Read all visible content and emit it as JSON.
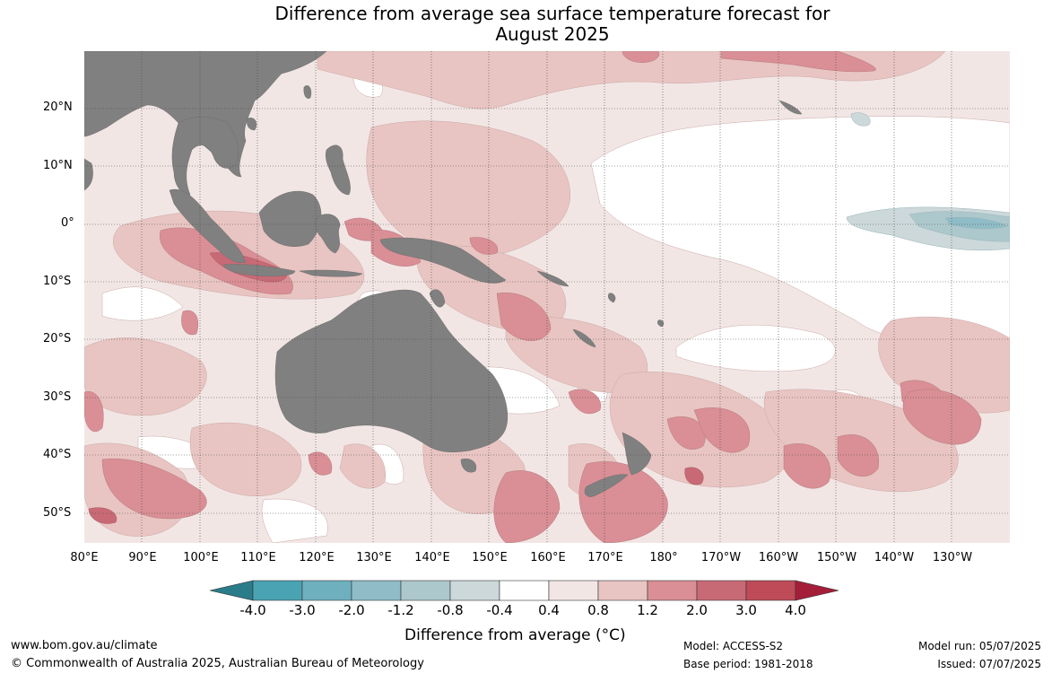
{
  "title_line1": "Difference from average sea surface temperature forecast for",
  "title_line2": "August 2025",
  "map": {
    "lat_labels": [
      "20°N",
      "10°N",
      "0°",
      "10°S",
      "20°S",
      "30°S",
      "40°S",
      "50°S"
    ],
    "lon_labels": [
      "80°E",
      "90°E",
      "100°E",
      "110°E",
      "120°E",
      "130°E",
      "140°E",
      "150°E",
      "160°E",
      "170°E",
      "180°",
      "170°W",
      "160°W",
      "150°W",
      "140°W",
      "130°W"
    ],
    "land_color": "#808080",
    "ocean_default_color": "#f2e6e5"
  },
  "colorbar": {
    "levels": [
      "-4.0",
      "-3.0",
      "-2.0",
      "-1.2",
      "-0.8",
      "-0.4",
      "0.4",
      "0.8",
      "1.2",
      "2.0",
      "3.0",
      "4.0"
    ],
    "colors": [
      "#2b7c8b",
      "#4aa3b3",
      "#6eb0bd",
      "#8fbcc6",
      "#adc8cd",
      "#ccd8da",
      "#ffffff",
      "#f2e6e5",
      "#e8c5c2",
      "#d98f95",
      "#c86a76",
      "#bf4a58",
      "#a41e3a"
    ],
    "label": "Difference from average (°C)"
  },
  "footer": {
    "url": "www.bom.gov.au/climate",
    "copyright": "© Commonwealth of Australia 2025, Australian Bureau of Meteorology",
    "model": "Model: ACCESS-S2",
    "base_period": "Base period: 1981-2018",
    "model_run": "Model run: 05/07/2025",
    "issued": "Issued: 07/07/2025"
  }
}
